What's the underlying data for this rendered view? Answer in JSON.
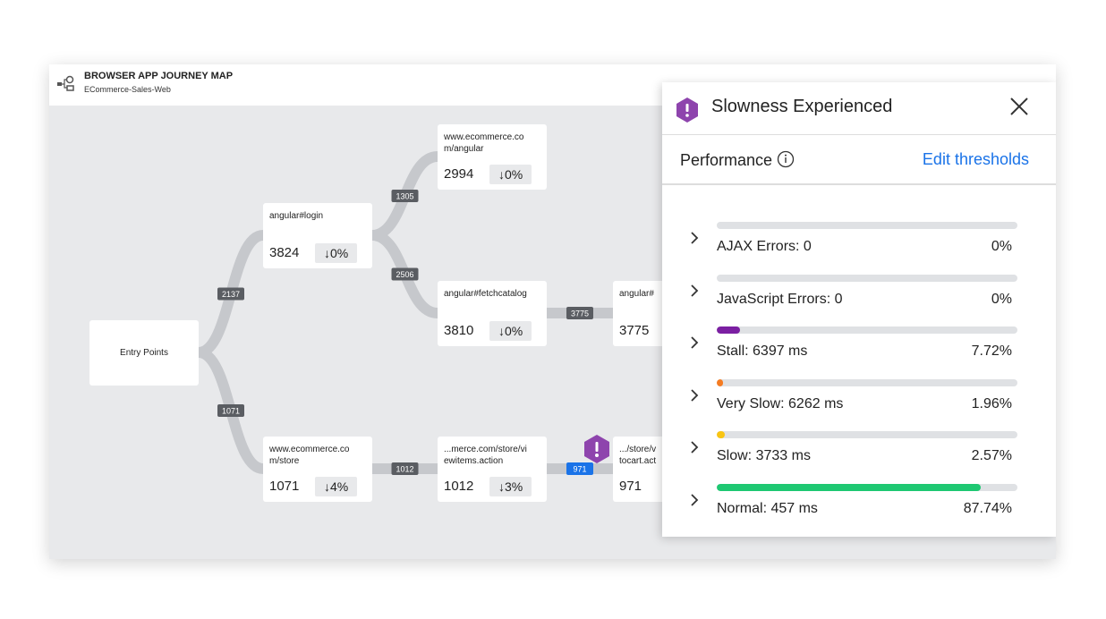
{
  "header": {
    "title": "BROWSER APP JOURNEY MAP",
    "subtitle": "ECommerce-Sales-Web"
  },
  "nodes": [
    {
      "lines": [
        "Entry Points"
      ]
    },
    {
      "lines": [
        "angular#login"
      ],
      "count": 3824,
      "change": "↓0%"
    },
    {
      "lines": [
        "www.ecommerce.co",
        "m/angular"
      ],
      "count": 2994,
      "change": "↓0%"
    },
    {
      "lines": [
        "angular#fetchcatalog"
      ],
      "count": 3810,
      "change": "↓0%"
    },
    {
      "lines": [
        "angular#"
      ],
      "count": 3775
    },
    {
      "lines": [
        "www.ecommerce.co",
        "m/store"
      ],
      "count": 1071,
      "change": "↓4%"
    },
    {
      "lines": [
        "...merce.com/store/vi",
        "ewitems.action"
      ],
      "count": 1012,
      "change": "↓3%"
    },
    {
      "lines": [
        ".../store/v",
        "tocart.act"
      ],
      "count": 971
    }
  ],
  "edges": [
    {
      "label": 2137
    },
    {
      "label": 1071
    },
    {
      "label": 1305
    },
    {
      "label": 2506
    },
    {
      "label": 3775
    },
    {
      "label": 1012
    },
    {
      "label": 971
    }
  ],
  "panel": {
    "title": "Slowness Experienced",
    "section": "Performance",
    "link": "Edit thresholds",
    "rows": [
      {
        "label": "AJAX Errors: 0",
        "percent": {
          "value": 0,
          "label": "0%"
        },
        "color": "#9aa0a6"
      },
      {
        "label": "JavaScript Errors: 0",
        "percent": {
          "value": 0,
          "label": "0%"
        },
        "color": "#9aa0a6"
      },
      {
        "label": "Stall: 6397 ms",
        "percent": {
          "value": 7.72,
          "label": "7.72%"
        },
        "color": "#7b1fa2"
      },
      {
        "label": "Very Slow: 6262 ms",
        "percent": {
          "value": 1.96,
          "label": "1.96%"
        },
        "color": "#f57c22"
      },
      {
        "label": "Slow: 3733 ms",
        "percent": {
          "value": 2.57,
          "label": "2.57%"
        },
        "color": "#f9c513"
      },
      {
        "label": "Normal: 457 ms",
        "percent": {
          "value": 87.74,
          "label": "87.74%"
        },
        "color": "#1ec872"
      }
    ]
  }
}
